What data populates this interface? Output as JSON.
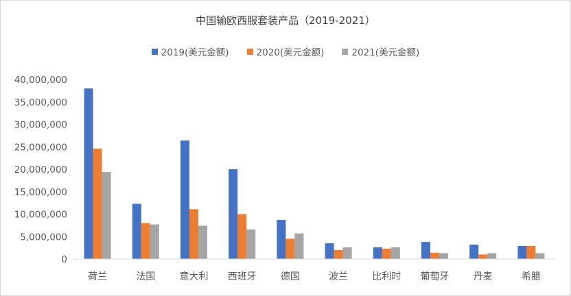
{
  "chart_data": {
    "type": "bar",
    "title": "中国输欧西服套装产品（2019-2021）",
    "categories": [
      "荷兰",
      "法国",
      "意大利",
      "西班牙",
      "德国",
      "波兰",
      "比利时",
      "葡萄牙",
      "丹麦",
      "希腊"
    ],
    "series": [
      {
        "name": "2019(美元金额)",
        "color": "#4472C4",
        "values": [
          38000000,
          12300000,
          26400000,
          20000000,
          8700000,
          3500000,
          2600000,
          3800000,
          3200000,
          2900000
        ]
      },
      {
        "name": "2020(美元金额)",
        "color": "#ED7D31",
        "values": [
          24600000,
          8000000,
          11100000,
          10000000,
          4500000,
          2000000,
          2300000,
          1400000,
          1000000,
          2900000
        ]
      },
      {
        "name": "2021(美元金额)",
        "color": "#A5A5A5",
        "values": [
          19400000,
          7700000,
          7400000,
          6600000,
          5700000,
          2600000,
          2600000,
          1300000,
          1300000,
          1300000
        ]
      }
    ],
    "ylim": [
      0,
      40000000
    ],
    "yticks": [
      "0",
      "5,000,000",
      "10,000,000",
      "15,000,000",
      "20,000,000",
      "25,000,000",
      "30,000,000",
      "35,000,000",
      "40,000,000"
    ],
    "grid": false,
    "legend_position": "top"
  }
}
